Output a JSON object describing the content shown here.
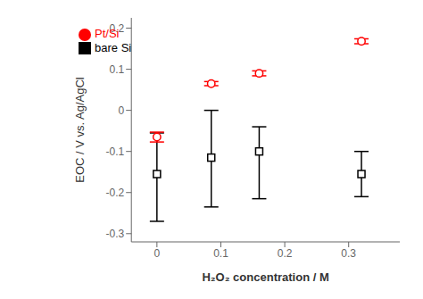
{
  "chart_data": {
    "type": "scatter",
    "xlabel": "H₂O₂ concentration / M",
    "ylabel": "EOC / V vs. Ag/AgCl",
    "xlim": [
      -0.04,
      0.38
    ],
    "xticks": [
      0,
      0.1,
      0.2,
      0.3
    ],
    "ylim": [
      -0.32,
      0.225
    ],
    "yticks": [
      -0.3,
      -0.2,
      -0.1,
      0,
      0.1,
      0.2
    ],
    "grid": false,
    "legend": "upper left",
    "series": [
      {
        "name": "bare Si",
        "color": "#000000",
        "marker": "square",
        "x": [
          0,
          0.085,
          0.16,
          0.32
        ],
        "values": [
          -0.155,
          -0.115,
          -0.1,
          -0.155
        ],
        "error_lo": [
          0.115,
          0.12,
          0.115,
          0.055
        ],
        "error_hi": [
          0.1,
          0.115,
          0.06,
          0.055
        ]
      },
      {
        "name": "Pt/Si",
        "color": "#ff0000",
        "marker": "circle",
        "x": [
          0,
          0.085,
          0.16,
          0.32
        ],
        "values": [
          -0.065,
          0.065,
          0.09,
          0.168
        ],
        "error_lo": [
          0.012,
          0.005,
          0.006,
          0.006
        ],
        "error_hi": [
          0.012,
          0.005,
          0.006,
          0.006
        ]
      }
    ]
  }
}
